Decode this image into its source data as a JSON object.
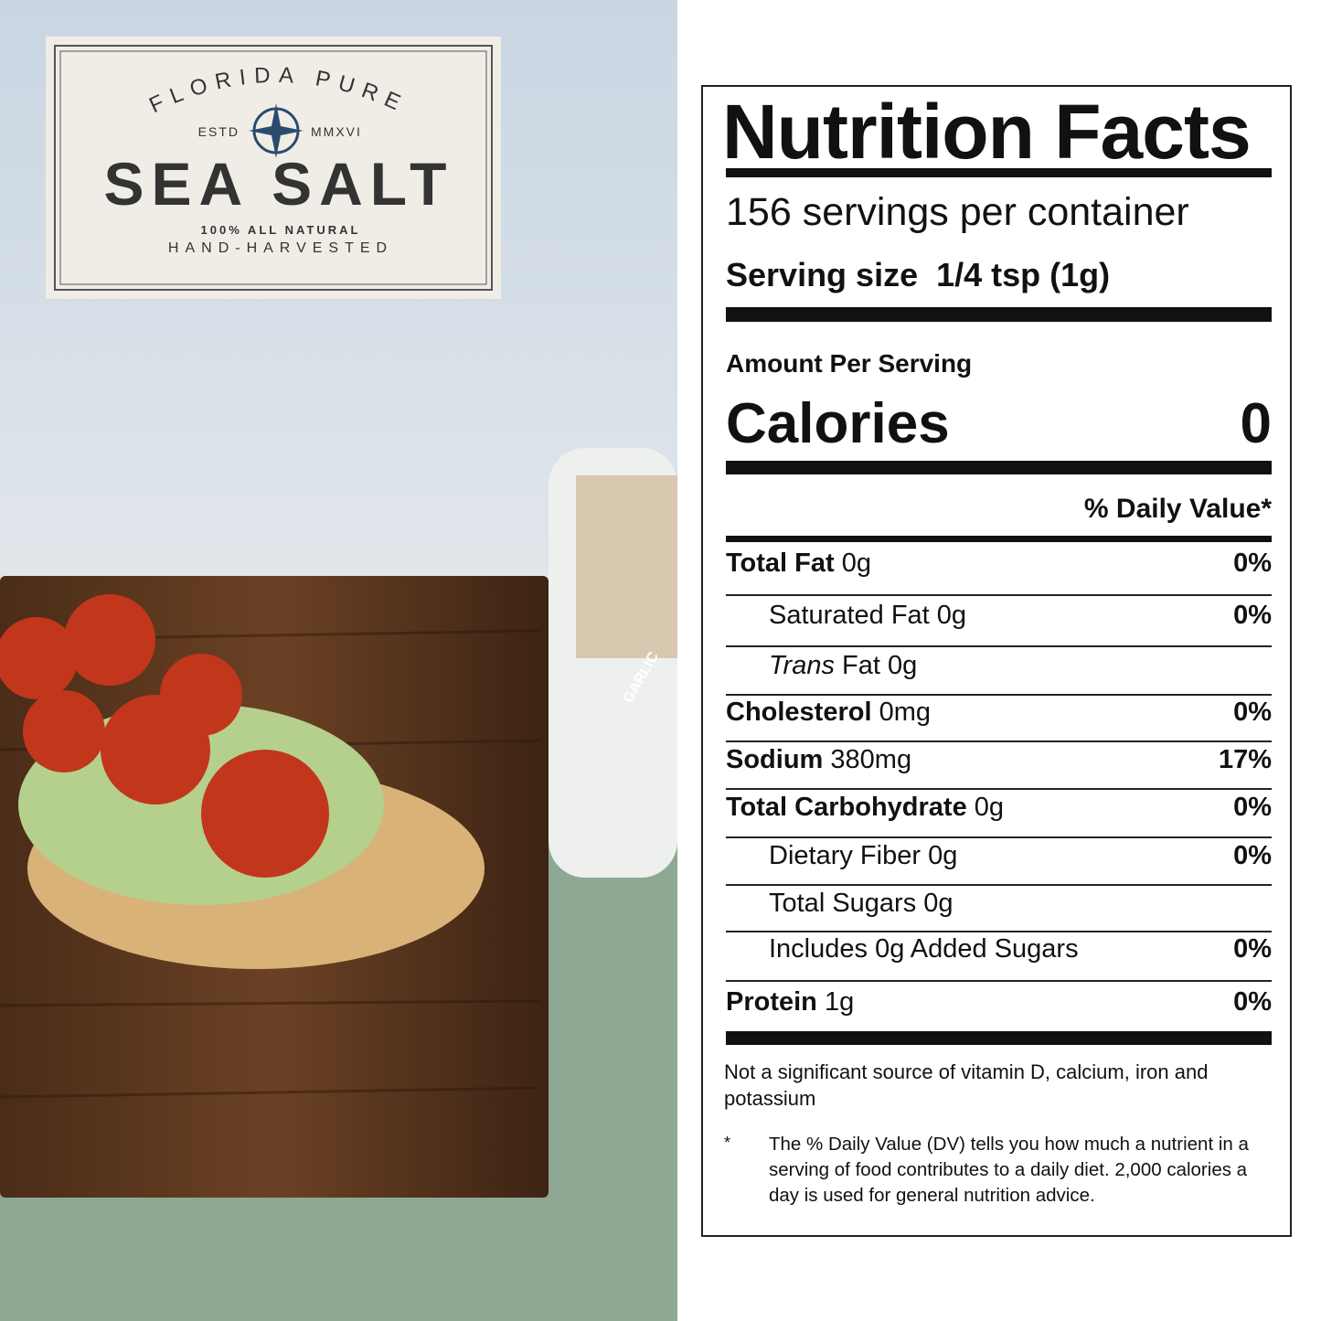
{
  "logo": {
    "brand": "FLORIDA PURE",
    "established": "ESTD",
    "year": "MMXVI",
    "product": "SEA SALT",
    "claim": "100% ALL NATURAL",
    "method": "HAND-HARVESTED"
  },
  "jar": {
    "flavor": "GARLIC"
  },
  "nutrition": {
    "title": "Nutrition Facts",
    "servings": "156 servings per container",
    "serving_size_label": "Serving size",
    "serving_size": "1/4 tsp (1g)",
    "amount_per_serving": "Amount Per Serving",
    "calories_label": "Calories",
    "calories": 0,
    "dv_header": "% Daily Value*",
    "rows": [
      {
        "name": "Total Fat",
        "amount": "0g",
        "dv": "0%",
        "bold": true,
        "indent": false
      },
      {
        "name": "Saturated Fat",
        "amount": "0g",
        "dv": "0%",
        "bold": false,
        "indent": true
      },
      {
        "name_italic": "Trans",
        "name": "Fat",
        "amount": "0g",
        "bold": false,
        "indent": true
      },
      {
        "name": "Cholesterol",
        "amount": "0mg",
        "dv": "0%",
        "bold": true,
        "indent": false
      },
      {
        "name": "Sodium",
        "amount": "380mg",
        "dv": "17%",
        "bold": true,
        "indent": false
      },
      {
        "name": "Total Carbohydrate",
        "amount": "0g",
        "dv": "0%",
        "bold": true,
        "indent": false
      },
      {
        "name": "Dietary Fiber",
        "amount": "0g",
        "dv": "0%",
        "bold": false,
        "indent": true
      },
      {
        "name": "Total Sugars",
        "amount": "0g",
        "bold": false,
        "indent": true
      },
      {
        "name": "Includes 0g Added Sugars",
        "dv": "0%",
        "bold": false,
        "indent": true
      },
      {
        "name": "Protein",
        "amount": "1g",
        "dv": "0%",
        "bold": true,
        "indent": false
      }
    ],
    "note": "Not a significant source of vitamin D, calcium, iron and potassium",
    "footnote_mark": "*",
    "footnote": "The % Daily Value (DV) tells you how much a nutrient in a serving of food contributes to a daily diet. 2,000 calories a day is used for general nutrition advice."
  }
}
